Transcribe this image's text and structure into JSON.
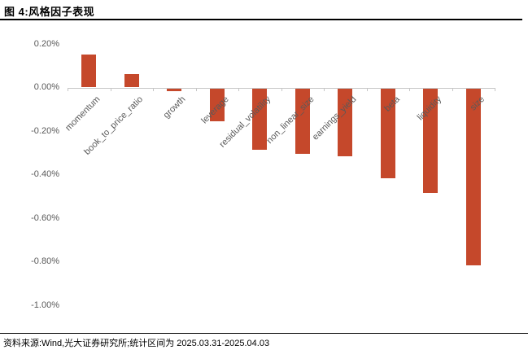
{
  "header": {
    "title": "图 4:风格因子表现"
  },
  "footer": {
    "source": "资料来源:Wind,光大证券研究所;统计区间为 2025.03.31-2025.04.03"
  },
  "chart_data": {
    "type": "bar",
    "title": "风格因子表现",
    "categories": [
      "momentum",
      "book_to_price_ratio",
      "growth",
      "leverage",
      "residual_volatility",
      "non_linear_size",
      "earnings_yield",
      "beta",
      "liquidity",
      "size"
    ],
    "values": [
      0.15,
      0.06,
      -0.01,
      -0.15,
      -0.28,
      -0.3,
      -0.31,
      -0.41,
      -0.48,
      -0.81
    ],
    "unit": "%",
    "xlabel": "",
    "ylabel": "",
    "ylim": [
      -1.0,
      0.2
    ],
    "y_ticks": [
      0.2,
      0.0,
      -0.2,
      -0.4,
      -0.6,
      -0.8,
      -1.0
    ],
    "y_tick_labels": [
      "0.20%",
      "0.00%",
      "-0.20%",
      "-0.40%",
      "-0.60%",
      "-0.80%",
      "-1.00%"
    ],
    "grid": false,
    "legend": "none",
    "bar_color": "#c5482b",
    "axis_color": "#c6c6c6",
    "tick_label_color": "#595959",
    "x_label_rotation_deg": 45
  }
}
